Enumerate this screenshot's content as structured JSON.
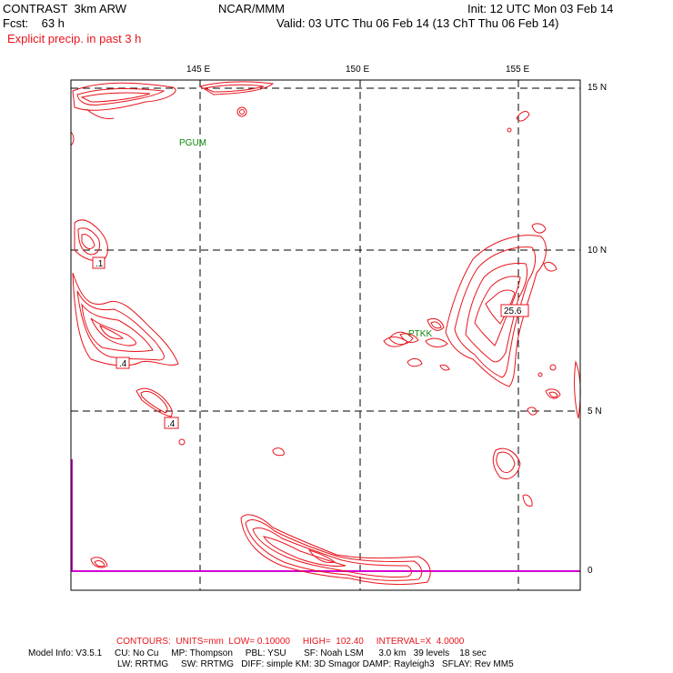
{
  "header": {
    "model": "CONTRAST  3km ARW",
    "org": "NCAR/MMM",
    "init": "Init: 12 UTC Mon 03 Feb 14",
    "fcst": "Fcst:    63 h",
    "valid": "Valid: 03 UTC Thu 06 Feb 14 (13 ChT Thu 06 Feb 14)",
    "field": "Explicit precip. in past 3 h"
  },
  "axes": {
    "lon_labels": [
      "145 E",
      "150 E",
      "155 E"
    ],
    "lat_labels": [
      "15 N",
      "10 N",
      "5 N",
      "0"
    ]
  },
  "stations": [
    "PGUM",
    "PTKK"
  ],
  "contour_labels": [
    ".1",
    ".4",
    ".4",
    "25.6"
  ],
  "footer": {
    "contours": "CONTOURS:  UNITS=mm  LOW= 0.10000     HIGH=  102.40     INTERVAL=X  4.0000",
    "model_info_1": "Model Info: V3.5.1     CU: No Cu     MP: Thompson     PBL: YSU       SF: Noah LSM      3.0 km   39 levels    18 sec",
    "model_info_2": "LW: RRTMG     SW: RRTMG   DIFF: simple KM: 3D Smagor DAMP: Rayleigh3   SFLAY: Rev MM5"
  },
  "colors": {
    "contour": "#e8141c",
    "station": "#0a8a0a",
    "boundary": "#d400d4",
    "grid": "#000000"
  }
}
